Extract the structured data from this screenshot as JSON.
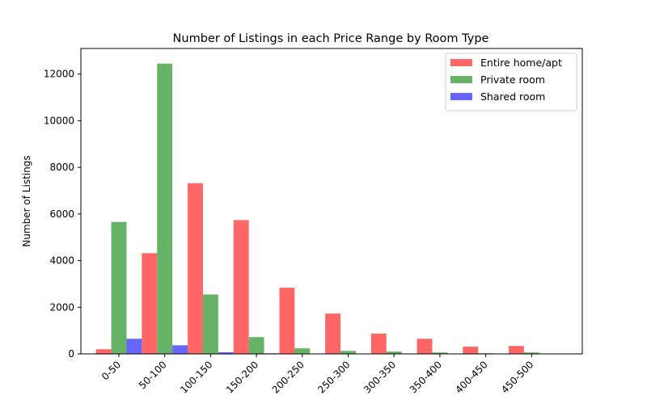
{
  "chart_data": {
    "type": "bar",
    "title": "Number of Listings in each Price Range by Room Type",
    "xlabel": "",
    "ylabel": "Number of Listings",
    "categories": [
      "0-50",
      "50-100",
      "100-150",
      "150-200",
      "200-250",
      "250-300",
      "300-350",
      "350-400",
      "400-450",
      "450-500"
    ],
    "series": [
      {
        "name": "Entire home/apt",
        "color": "#ff6666",
        "values": [
          200,
          4320,
          7320,
          5740,
          2840,
          1730,
          870,
          650,
          310,
          340
        ]
      },
      {
        "name": "Private room",
        "color": "#66b266",
        "values": [
          5660,
          12450,
          2550,
          720,
          240,
          130,
          100,
          60,
          30,
          60
        ]
      },
      {
        "name": "Shared room",
        "color": "#6666ff",
        "values": [
          650,
          370,
          70,
          25,
          15,
          10,
          8,
          5,
          4,
          3
        ]
      }
    ],
    "ylim": [
      0,
      13100
    ],
    "yticks": [
      0,
      2000,
      4000,
      6000,
      8000,
      10000,
      12000
    ],
    "legend_position": "top-right",
    "grid": false
  }
}
